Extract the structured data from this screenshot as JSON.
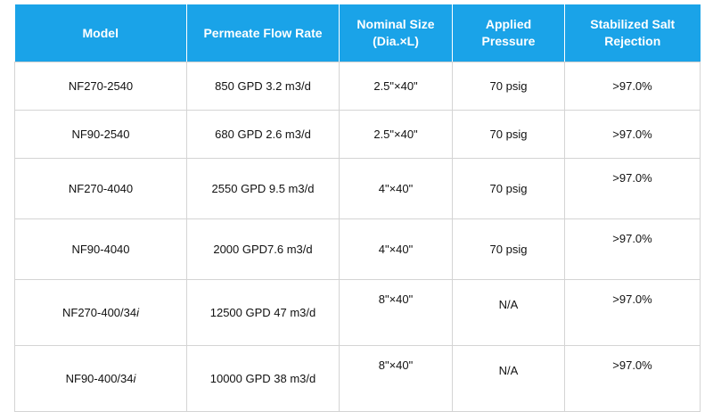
{
  "table": {
    "headers": [
      "Model",
      "Permeate Flow Rate",
      "Nominal Size (Dia.×L)",
      "Applied Pressure",
      "Stabilized Salt Rejection"
    ],
    "rows": [
      {
        "model": "NF270-2540",
        "model_suffix": "",
        "flow": "850 GPD 3.2 m3/d",
        "size": "2.5\"×40\"",
        "pressure": "70 psig",
        "rejection": ">97.0%"
      },
      {
        "model": "NF90-2540",
        "model_suffix": "",
        "flow": "680 GPD 2.6 m3/d",
        "size": "2.5\"×40\"",
        "pressure": "70 psig",
        "rejection": ">97.0%"
      },
      {
        "model": "NF270-4040",
        "model_suffix": "",
        "flow": "2550 GPD 9.5 m3/d",
        "size": "4\"×40\"",
        "pressure": "70 psig",
        "rejection": ">97.0%"
      },
      {
        "model": "NF90-4040",
        "model_suffix": "",
        "flow": "2000 GPD7.6 m3/d",
        "size": "4\"×40\"",
        "pressure": "70 psig",
        "rejection": ">97.0%"
      },
      {
        "model": "NF270-400/34",
        "model_suffix": "i",
        "flow": "12500 GPD 47 m3/d",
        "size": "8\"×40\"",
        "pressure": "N/A",
        "rejection": ">97.0%"
      },
      {
        "model": "NF90-400/34",
        "model_suffix": "i",
        "flow": "10000 GPD 38 m3/d",
        "size": "8\"×40\"",
        "pressure": "N/A",
        "rejection": ">97.0%"
      }
    ]
  }
}
